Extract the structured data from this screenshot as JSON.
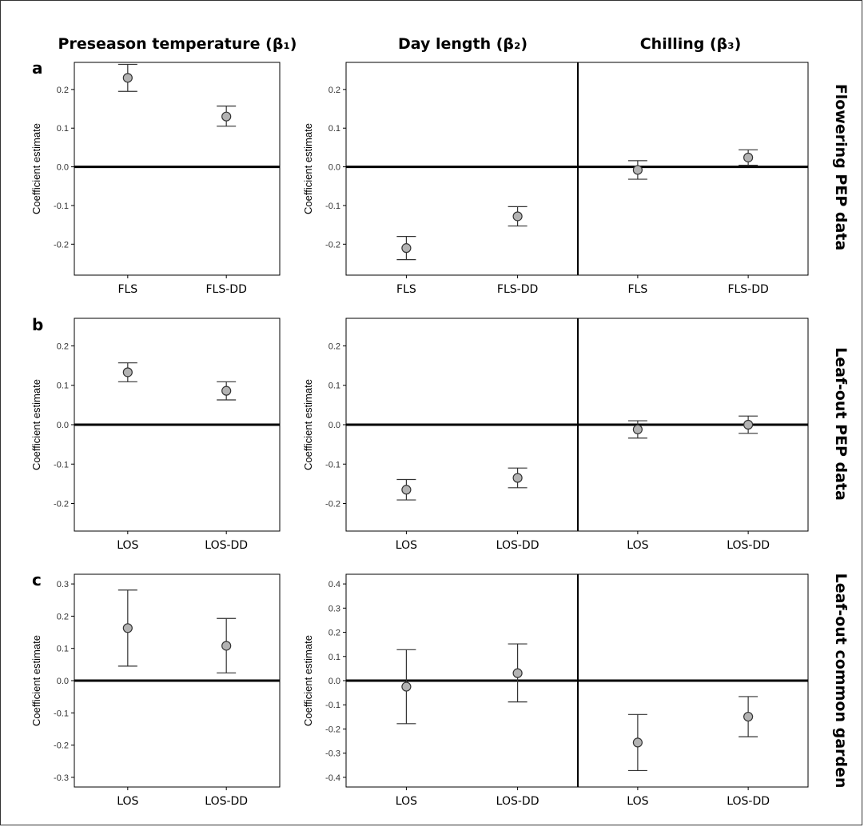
{
  "column_titles": [
    "Preseason temperature (β₁)",
    "Day length (β₂)",
    "Chilling (β₃)"
  ],
  "row_titles": [
    "Flowering PEP data",
    "Leaf-out PEP data",
    "Leaf-out common garden"
  ],
  "panel_letters": [
    "a",
    "b",
    "c"
  ],
  "ylabel": "Coefficient estimate",
  "colors": {
    "point_fill": "#b3b3b3",
    "point_stroke": "#333333",
    "axis": "#000000",
    "zero_line": "#000000"
  },
  "chart_data": [
    {
      "type": "scatter",
      "id": "a-temp",
      "row": "a",
      "column": "Preseason temperature (β₁)",
      "categories": [
        "FLS",
        "FLS-DD"
      ],
      "ylim": [
        -0.28,
        0.27
      ],
      "yticks": [
        -0.2,
        -0.1,
        0.0,
        0.1,
        0.2
      ],
      "estimates": [
        0.23,
        0.13
      ],
      "lower": [
        0.195,
        0.105
      ],
      "upper": [
        0.265,
        0.157
      ]
    },
    {
      "type": "scatter",
      "id": "a-day",
      "row": "a",
      "column": "Day length (β₂)",
      "categories": [
        "FLS",
        "FLS-DD"
      ],
      "ylim": [
        -0.28,
        0.27
      ],
      "yticks": [
        -0.2,
        -0.1,
        0.0,
        0.1,
        0.2
      ],
      "estimates": [
        -0.21,
        -0.128
      ],
      "lower": [
        -0.24,
        -0.153
      ],
      "upper": [
        -0.18,
        -0.103
      ]
    },
    {
      "type": "scatter",
      "id": "a-chill",
      "row": "a",
      "column": "Chilling (β₃)",
      "categories": [
        "FLS",
        "FLS-DD"
      ],
      "ylim": [
        -0.28,
        0.27
      ],
      "yticks": [],
      "estimates": [
        -0.008,
        0.024
      ],
      "lower": [
        -0.032,
        0.004
      ],
      "upper": [
        0.016,
        0.044
      ]
    },
    {
      "type": "scatter",
      "id": "b-temp",
      "row": "b",
      "column": "Preseason temperature (β₁)",
      "categories": [
        "LOS",
        "LOS-DD"
      ],
      "ylim": [
        -0.27,
        0.27
      ],
      "yticks": [
        -0.2,
        -0.1,
        0.0,
        0.1,
        0.2
      ],
      "estimates": [
        0.133,
        0.086
      ],
      "lower": [
        0.109,
        0.063
      ],
      "upper": [
        0.157,
        0.109
      ]
    },
    {
      "type": "scatter",
      "id": "b-day",
      "row": "b",
      "column": "Day length (β₂)",
      "categories": [
        "LOS",
        "LOS-DD"
      ],
      "ylim": [
        -0.27,
        0.27
      ],
      "yticks": [
        -0.2,
        -0.1,
        0.0,
        0.1,
        0.2
      ],
      "estimates": [
        -0.165,
        -0.135
      ],
      "lower": [
        -0.191,
        -0.16
      ],
      "upper": [
        -0.139,
        -0.11
      ]
    },
    {
      "type": "scatter",
      "id": "b-chill",
      "row": "b",
      "column": "Chilling (β₃)",
      "categories": [
        "LOS",
        "LOS-DD"
      ],
      "ylim": [
        -0.27,
        0.27
      ],
      "yticks": [],
      "estimates": [
        -0.012,
        0.0
      ],
      "lower": [
        -0.034,
        -0.022
      ],
      "upper": [
        0.01,
        0.022
      ]
    },
    {
      "type": "scatter",
      "id": "c-temp",
      "row": "c",
      "column": "Preseason temperature (β₁)",
      "categories": [
        "LOS",
        "LOS-DD"
      ],
      "ylim": [
        -0.33,
        0.33
      ],
      "yticks": [
        -0.3,
        -0.2,
        -0.1,
        0.0,
        0.1,
        0.2,
        0.3
      ],
      "estimates": [
        0.163,
        0.108
      ],
      "lower": [
        0.045,
        0.024
      ],
      "upper": [
        0.281,
        0.193
      ]
    },
    {
      "type": "scatter",
      "id": "c-day",
      "row": "c",
      "column": "Day length (β₂)",
      "categories": [
        "LOS",
        "LOS-DD"
      ],
      "ylim": [
        -0.44,
        0.44
      ],
      "yticks": [
        -0.4,
        -0.3,
        -0.2,
        -0.1,
        0.0,
        0.1,
        0.2,
        0.3,
        0.4
      ],
      "estimates": [
        -0.025,
        0.031
      ],
      "lower": [
        -0.178,
        -0.088
      ],
      "upper": [
        0.128,
        0.152
      ]
    },
    {
      "type": "scatter",
      "id": "c-chill",
      "row": "c",
      "column": "Chilling (β₃)",
      "categories": [
        "LOS",
        "LOS-DD"
      ],
      "ylim": [
        -0.44,
        0.44
      ],
      "yticks": [],
      "estimates": [
        -0.256,
        -0.149
      ],
      "lower": [
        -0.372,
        -0.232
      ],
      "upper": [
        -0.14,
        -0.066
      ]
    }
  ]
}
